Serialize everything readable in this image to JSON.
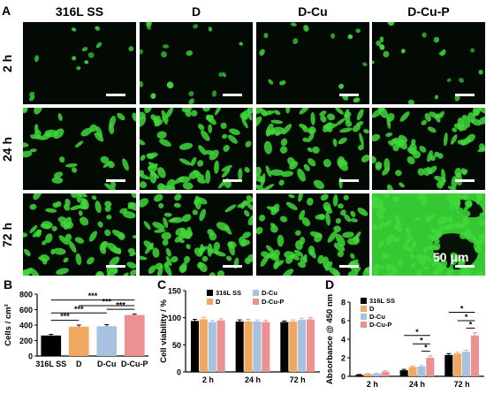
{
  "panel_a": {
    "letter": "A",
    "columns": [
      "316L SS",
      "D",
      "D-Cu",
      "D-Cu-P"
    ],
    "rows": [
      "2 h",
      "24 h",
      "72 h"
    ],
    "scale_label": "50 μm",
    "cell_color": "#3fd83a",
    "background_color": "#030a03",
    "density": [
      [
        0.1,
        0.18,
        0.14,
        0.2
      ],
      [
        0.2,
        0.75,
        0.7,
        0.75
      ],
      [
        0.85,
        0.8,
        0.8,
        1.0
      ]
    ]
  },
  "chart_data": [
    {
      "panel": "B",
      "type": "bar",
      "ylabel": "Cells / cm²",
      "categories": [
        "316L SS",
        "D",
        "D-Cu",
        "D-Cu-P"
      ],
      "values": [
        265,
        380,
        385,
        530
      ],
      "errors": [
        15,
        20,
        20,
        12
      ],
      "colors": [
        "#000000",
        "#f0a860",
        "#a7c1e0",
        "#ec9191"
      ],
      "ylim": [
        0,
        800
      ],
      "yticks": [
        0,
        200,
        400,
        600,
        800
      ],
      "significance": [
        {
          "from": 0,
          "to": 1,
          "label": "***",
          "y": 462
        },
        {
          "from": 0,
          "to": 2,
          "label": "***",
          "y": 557
        },
        {
          "from": 1,
          "to": 3,
          "label": "***",
          "y": 652
        },
        {
          "from": 2,
          "to": 3,
          "label": "***",
          "y": 604
        },
        {
          "from": 0,
          "to": 3,
          "label": "***",
          "y": 724
        }
      ]
    },
    {
      "panel": "C",
      "type": "bar",
      "ylabel": "Cell viability / %",
      "categories": [
        "2 h",
        "24 h",
        "72 h"
      ],
      "series": [
        {
          "name": "316L SS",
          "color": "#000000",
          "values": [
            94,
            93,
            92
          ],
          "errors": [
            3,
            3,
            2
          ]
        },
        {
          "name": "D",
          "color": "#f0a860",
          "values": [
            97,
            93,
            93
          ],
          "errors": [
            4,
            4,
            3
          ]
        },
        {
          "name": "D-Cu",
          "color": "#a7c1e0",
          "values": [
            92,
            93,
            96
          ],
          "errors": [
            3,
            3,
            3
          ]
        },
        {
          "name": "D-Cu-P",
          "color": "#ec9191",
          "values": [
            95,
            92,
            97
          ],
          "errors": [
            3,
            3,
            3
          ]
        }
      ],
      "ylim": [
        0,
        150
      ],
      "yticks": [
        0,
        50,
        100,
        150
      ]
    },
    {
      "panel": "D",
      "type": "bar",
      "ylabel": "Absorbance @ 450 nm",
      "categories": [
        "2 h",
        "24 h",
        "72 h"
      ],
      "series": [
        {
          "name": "316L SS",
          "color": "#000000",
          "values": [
            0.15,
            0.65,
            2.3
          ],
          "errors": [
            0.05,
            0.1,
            0.15
          ]
        },
        {
          "name": "D",
          "color": "#f0a860",
          "values": [
            0.25,
            1.0,
            2.45
          ],
          "errors": [
            0.05,
            0.1,
            0.15
          ]
        },
        {
          "name": "D-Cu",
          "color": "#a7c1e0",
          "values": [
            0.3,
            1.05,
            2.65
          ],
          "errors": [
            0.05,
            0.12,
            0.15
          ]
        },
        {
          "name": "D-Cu-P",
          "color": "#ec9191",
          "values": [
            0.5,
            2.0,
            4.4
          ],
          "errors": [
            0.1,
            0.2,
            0.3
          ]
        }
      ],
      "ylim": [
        0,
        8
      ],
      "yticks": [
        0,
        2,
        4,
        6,
        8
      ],
      "significance": [
        {
          "group": 1,
          "from": 2,
          "to": 3,
          "label": "*",
          "y": 2.7
        },
        {
          "group": 1,
          "from": 1,
          "to": 3,
          "label": "*",
          "y": 3.5
        },
        {
          "group": 1,
          "from": 0,
          "to": 3,
          "label": "*",
          "y": 4.4
        },
        {
          "group": 2,
          "from": 2,
          "to": 3,
          "label": "*",
          "y": 5.2
        },
        {
          "group": 2,
          "from": 1,
          "to": 3,
          "label": "*",
          "y": 6.0
        },
        {
          "group": 2,
          "from": 0,
          "to": 3,
          "label": "*",
          "y": 6.9
        }
      ]
    }
  ]
}
